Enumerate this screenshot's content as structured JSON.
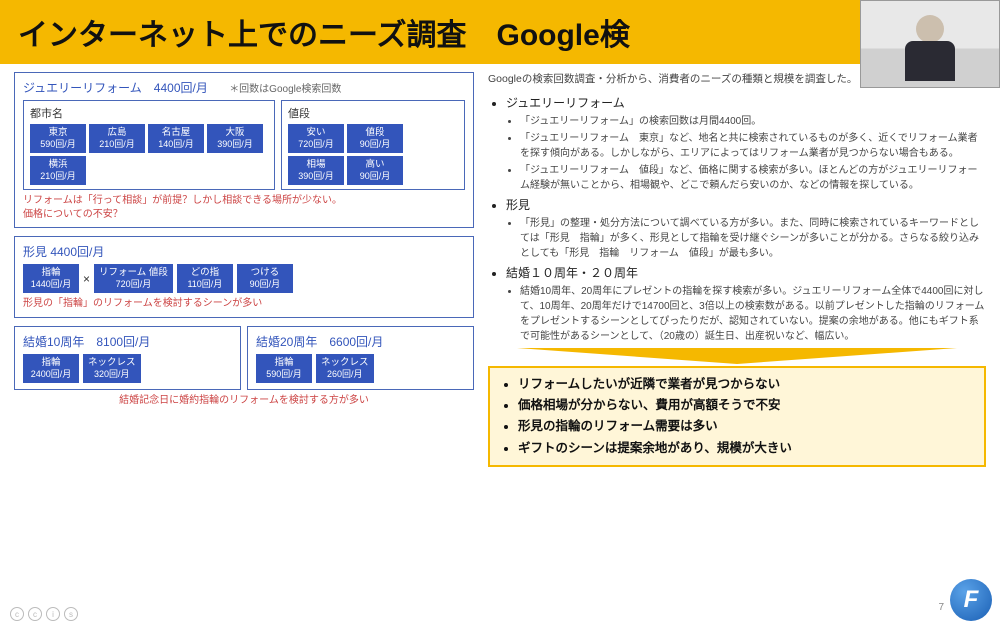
{
  "title": "インターネット上でのニーズ調査　Google検",
  "intro": "Googleの検索回数調査・分析から、消費者のニーズの種類と規模を調査した。",
  "box1": {
    "header": "ジュエリーリフォーム　4400回/月",
    "note": "＊回数はGoogle検索回数",
    "city_title": "都市名",
    "price_title": "値段",
    "cities": [
      {
        "l": "東京",
        "v": "590回/月"
      },
      {
        "l": "広島",
        "v": "210回/月"
      },
      {
        "l": "名古屋",
        "v": "140回/月"
      },
      {
        "l": "大阪",
        "v": "390回/月"
      },
      {
        "l": "横浜",
        "v": "210回/月"
      }
    ],
    "prices": [
      {
        "l": "安い",
        "v": "720回/月"
      },
      {
        "l": "値段",
        "v": "90回/月"
      },
      {
        "l": "相場",
        "v": "390回/月"
      },
      {
        "l": "高い",
        "v": "90回/月"
      }
    ],
    "note_red": "リフォームは「行って相談」が前提？しかし相談できる場所が少ない。\n価格についての不安？"
  },
  "box2": {
    "header": "形見 4400回/月",
    "items": [
      {
        "l": "指輪",
        "v": "1440回/月"
      },
      {
        "l": "リフォーム 値段",
        "v": "720回/月"
      },
      {
        "l": "どの指",
        "v": "110回/月"
      },
      {
        "l": "つける",
        "v": "90回/月"
      }
    ],
    "note_red": "形見の「指輪」のリフォームを検討するシーンが多い"
  },
  "box3a": {
    "header": "結婚10周年　8100回/月",
    "items": [
      {
        "l": "指輪",
        "v": "2400回/月"
      },
      {
        "l": "ネックレス",
        "v": "320回/月"
      }
    ]
  },
  "box3b": {
    "header": "結婚20周年　6600回/月",
    "items": [
      {
        "l": "指輪",
        "v": "590回/月"
      },
      {
        "l": "ネックレス",
        "v": "260回/月"
      }
    ]
  },
  "box3_note": "結婚記念日に婚約指輪のリフォームを検討する方が多い",
  "bullets": {
    "b1": "ジュエリーリフォーム",
    "b1s": [
      "「ジュエリーリフォーム」の検索回数は月間4400回。",
      "「ジュエリーリフォーム　東京」など、地名と共に検索されているものが多く、近くでリフォーム業者を探す傾向がある。しかしながら、エリアによってはリフォーム業者が見つからない場合もある。",
      "「ジュエリーリフォーム　値段」など、価格に関する検索が多い。ほとんどの方がジュエリーリフォーム経験が無いことから、相場観や、どこで頼んだら安いのか、などの情報を探している。"
    ],
    "b2": "形見",
    "b2s": [
      "「形見」の整理・処分方法について調べている方が多い。また、同時に検索されているキーワードとしては「形見　指輪」が多く、形見として指輪を受け継ぐシーンが多いことが分かる。さらなる絞り込みとしても「形見　指輪　リフォーム　値段」が最も多い。"
    ],
    "b3": "結婚１０周年・２０周年",
    "b3s": [
      "結婚10周年、20周年にプレゼントの指輪を探す検索が多い。ジュエリーリフォーム全体で4400回に対して、10周年、20周年だけで14700回と、3倍以上の検索数がある。以前プレゼントした指輪のリフォームをプレゼントするシーンとしてぴったりだが、認知されていない。提案の余地がある。他にもギフト系で可能性があるシーンとして、（20歳の）誕生日、出産祝いなど、幅広い。"
    ]
  },
  "summary": [
    "リフォームしたいが近隣で業者が見つからない",
    "価格相場が分からない、費用が高額そうで不安",
    "形見の指輪のリフォーム需要は多い",
    "ギフトのシーンは提案余地があり、規模が大きい"
  ],
  "page": "7",
  "logo": "F"
}
